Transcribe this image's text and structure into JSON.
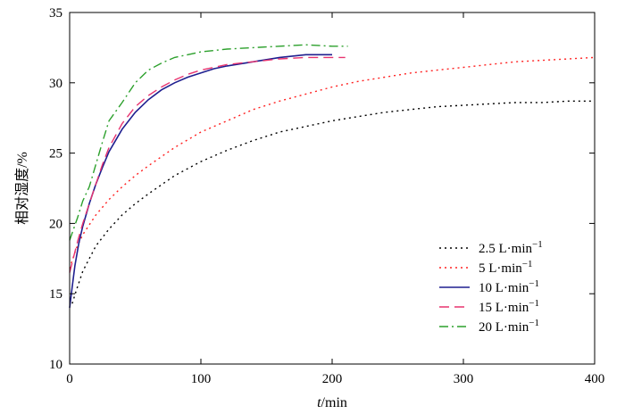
{
  "chart_data": {
    "type": "line",
    "title": "",
    "xlabel_italic": "t",
    "xlabel_unit": "/min",
    "ylabel": "相对湿度/%",
    "xlim": [
      0,
      400
    ],
    "ylim": [
      10,
      35
    ],
    "x_ticks": [
      0,
      100,
      200,
      300,
      400
    ],
    "y_ticks": [
      10,
      15,
      20,
      25,
      30,
      35
    ],
    "grid": false,
    "legend_position": "bottom-right",
    "unit_base": "L·min",
    "unit_exp": "−1",
    "series": [
      {
        "name": "2.5 L·min−1",
        "flow": "2.5",
        "color": "#000000",
        "style": "dotted",
        "points": [
          [
            2,
            14.3
          ],
          [
            5,
            15.2
          ],
          [
            10,
            16.6
          ],
          [
            20,
            18.4
          ],
          [
            30,
            19.6
          ],
          [
            40,
            20.6
          ],
          [
            50,
            21.4
          ],
          [
            60,
            22.1
          ],
          [
            80,
            23.4
          ],
          [
            100,
            24.4
          ],
          [
            120,
            25.2
          ],
          [
            140,
            25.9
          ],
          [
            160,
            26.5
          ],
          [
            180,
            26.9
          ],
          [
            200,
            27.3
          ],
          [
            220,
            27.6
          ],
          [
            240,
            27.9
          ],
          [
            260,
            28.1
          ],
          [
            280,
            28.3
          ],
          [
            300,
            28.4
          ],
          [
            320,
            28.5
          ],
          [
            340,
            28.6
          ],
          [
            360,
            28.6
          ],
          [
            380,
            28.7
          ],
          [
            400,
            28.7
          ]
        ]
      },
      {
        "name": "5 L·min−1",
        "flow": "5",
        "color": "#ff2020",
        "style": "dotted",
        "points": [
          [
            0,
            16.8
          ],
          [
            5,
            18.2
          ],
          [
            10,
            19.2
          ],
          [
            20,
            20.6
          ],
          [
            30,
            21.7
          ],
          [
            40,
            22.6
          ],
          [
            50,
            23.4
          ],
          [
            60,
            24.1
          ],
          [
            80,
            25.4
          ],
          [
            100,
            26.5
          ],
          [
            120,
            27.3
          ],
          [
            140,
            28.1
          ],
          [
            160,
            28.7
          ],
          [
            180,
            29.2
          ],
          [
            200,
            29.7
          ],
          [
            220,
            30.1
          ],
          [
            240,
            30.4
          ],
          [
            260,
            30.7
          ],
          [
            280,
            30.9
          ],
          [
            300,
            31.1
          ],
          [
            320,
            31.3
          ],
          [
            340,
            31.5
          ],
          [
            360,
            31.6
          ],
          [
            380,
            31.7
          ],
          [
            400,
            31.8
          ]
        ]
      },
      {
        "name": "10 L·min−1",
        "flow": "10",
        "color": "#1f1f8f",
        "style": "solid",
        "points": [
          [
            0,
            14.0
          ],
          [
            2,
            15.5
          ],
          [
            4,
            17.0
          ],
          [
            7,
            18.6
          ],
          [
            10,
            19.8
          ],
          [
            15,
            21.4
          ],
          [
            20,
            22.8
          ],
          [
            25,
            24.0
          ],
          [
            30,
            25.1
          ],
          [
            40,
            26.7
          ],
          [
            50,
            27.9
          ],
          [
            60,
            28.8
          ],
          [
            70,
            29.5
          ],
          [
            80,
            30.0
          ],
          [
            90,
            30.4
          ],
          [
            100,
            30.7
          ],
          [
            110,
            31.0
          ],
          [
            120,
            31.2
          ],
          [
            140,
            31.5
          ],
          [
            160,
            31.8
          ],
          [
            180,
            32.0
          ],
          [
            200,
            32.0
          ]
        ]
      },
      {
        "name": "15 L·min−1",
        "flow": "15",
        "color": "#e8336f",
        "style": "dashed",
        "points": [
          [
            0,
            16.5
          ],
          [
            3,
            17.6
          ],
          [
            6,
            18.7
          ],
          [
            10,
            20.0
          ],
          [
            15,
            21.4
          ],
          [
            20,
            22.8
          ],
          [
            25,
            24.2
          ],
          [
            30,
            25.4
          ],
          [
            40,
            27.1
          ],
          [
            50,
            28.3
          ],
          [
            60,
            29.1
          ],
          [
            70,
            29.7
          ],
          [
            80,
            30.2
          ],
          [
            90,
            30.6
          ],
          [
            100,
            30.9
          ],
          [
            120,
            31.3
          ],
          [
            140,
            31.5
          ],
          [
            160,
            31.7
          ],
          [
            180,
            31.8
          ],
          [
            200,
            31.8
          ],
          [
            210,
            31.8
          ]
        ]
      },
      {
        "name": "20 L·min−1",
        "flow": "20",
        "color": "#2ca02c",
        "style": "dashdot",
        "points": [
          [
            0,
            18.8
          ],
          [
            3,
            19.6
          ],
          [
            6,
            20.4
          ],
          [
            10,
            21.6
          ],
          [
            15,
            22.6
          ],
          [
            20,
            24.2
          ],
          [
            25,
            25.8
          ],
          [
            30,
            27.3
          ],
          [
            40,
            28.6
          ],
          [
            50,
            30.0
          ],
          [
            60,
            30.9
          ],
          [
            70,
            31.4
          ],
          [
            80,
            31.8
          ],
          [
            90,
            32.0
          ],
          [
            100,
            32.2
          ],
          [
            120,
            32.4
          ],
          [
            140,
            32.5
          ],
          [
            160,
            32.6
          ],
          [
            180,
            32.7
          ],
          [
            200,
            32.6
          ],
          [
            212,
            32.6
          ]
        ]
      }
    ]
  }
}
